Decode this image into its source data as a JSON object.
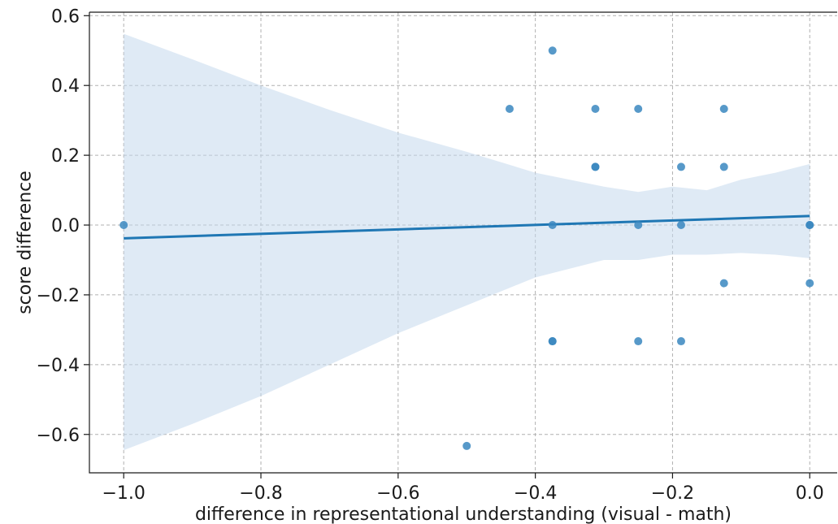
{
  "chart_data": {
    "type": "scatter",
    "title": "",
    "xlabel": "difference in representational understanding (visual - math)",
    "ylabel": "score difference",
    "xlim": [
      -1.05,
      0.04
    ],
    "ylim": [
      -0.71,
      0.61
    ],
    "xticks": [
      -1.0,
      -0.8,
      -0.6,
      -0.4,
      -0.2,
      0.0
    ],
    "xtick_labels": [
      "−1.0",
      "−0.8",
      "−0.6",
      "−0.4",
      "−0.2",
      "0.0"
    ],
    "yticks": [
      -0.6,
      -0.4,
      -0.2,
      0.0,
      0.2,
      0.4,
      0.6
    ],
    "ytick_labels": [
      "−0.6",
      "−0.4",
      "−0.2",
      "0.0",
      "0.2",
      "0.4",
      "0.6"
    ],
    "grid": true,
    "points": [
      {
        "x": -1.0,
        "y": 0.0
      },
      {
        "x": -0.5,
        "y": -0.633
      },
      {
        "x": -0.4375,
        "y": 0.333
      },
      {
        "x": -0.375,
        "y": 0.5
      },
      {
        "x": -0.375,
        "y": 0.0
      },
      {
        "x": -0.375,
        "y": -0.333
      },
      {
        "x": -0.375,
        "y": -0.333
      },
      {
        "x": -0.3125,
        "y": 0.333
      },
      {
        "x": -0.3125,
        "y": 0.1667
      },
      {
        "x": -0.3125,
        "y": 0.1667
      },
      {
        "x": -0.25,
        "y": 0.333
      },
      {
        "x": -0.25,
        "y": 0.0
      },
      {
        "x": -0.25,
        "y": -0.333
      },
      {
        "x": -0.1875,
        "y": 0.1667
      },
      {
        "x": -0.1875,
        "y": 0.0
      },
      {
        "x": -0.1875,
        "y": -0.333
      },
      {
        "x": -0.125,
        "y": 0.333
      },
      {
        "x": -0.125,
        "y": 0.1667
      },
      {
        "x": -0.125,
        "y": -0.1667
      },
      {
        "x": 0.0,
        "y": 0.0
      },
      {
        "x": 0.0,
        "y": 0.0
      },
      {
        "x": 0.0,
        "y": -0.1667
      }
    ],
    "regression_line": {
      "x": [
        -1.0,
        0.0
      ],
      "y": [
        -0.038,
        0.026
      ]
    },
    "confidence_band": {
      "x": [
        -1.0,
        -0.9,
        -0.8,
        -0.7,
        -0.6,
        -0.5,
        -0.4,
        -0.3,
        -0.25,
        -0.2,
        -0.15,
        -0.1,
        -0.05,
        0.0
      ],
      "upper": [
        0.548,
        0.475,
        0.4,
        0.33,
        0.265,
        0.21,
        0.15,
        0.11,
        0.095,
        0.11,
        0.1,
        0.13,
        0.15,
        0.175
      ],
      "lower": [
        -0.645,
        -0.57,
        -0.49,
        -0.4,
        -0.31,
        -0.23,
        -0.15,
        -0.1,
        -0.1,
        -0.085,
        -0.085,
        -0.08,
        -0.085,
        -0.095
      ]
    },
    "colors": {
      "points": "#3a87c0",
      "line": "#1f77b4",
      "band": "#c4d9ec"
    }
  }
}
